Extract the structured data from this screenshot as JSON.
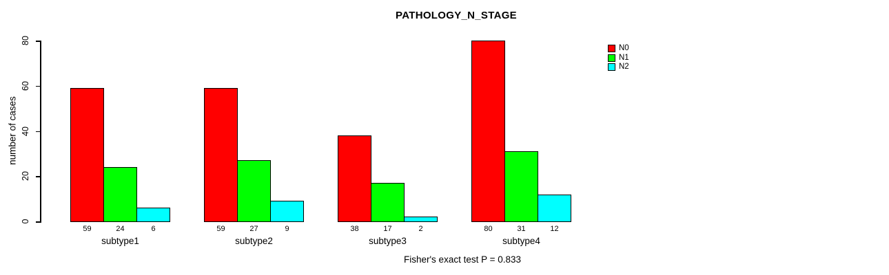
{
  "chart_data": {
    "type": "bar",
    "title": "PATHOLOGY_N_STAGE",
    "ylabel": "number of cases",
    "xlabel": "",
    "categories": [
      "subtype1",
      "subtype2",
      "subtype3",
      "subtype4"
    ],
    "series": [
      {
        "name": "N0",
        "color": "#ff0000",
        "values": [
          59,
          59,
          38,
          80
        ]
      },
      {
        "name": "N1",
        "color": "#00ff00",
        "values": [
          24,
          27,
          17,
          31
        ]
      },
      {
        "name": "N2",
        "color": "#00ffff",
        "values": [
          6,
          9,
          2,
          12
        ]
      }
    ],
    "yticks": [
      0,
      20,
      40,
      60,
      80
    ],
    "ylim": [
      0,
      80
    ],
    "bar_value_labels_shown": true,
    "legend_position": "right-outside-top",
    "grid": false,
    "footnote": "Fisher's exact test P = 0.833"
  },
  "colors": {
    "background": "#ffffff",
    "axis": "#000000",
    "bar_border": "#000000",
    "text": "#000000"
  }
}
